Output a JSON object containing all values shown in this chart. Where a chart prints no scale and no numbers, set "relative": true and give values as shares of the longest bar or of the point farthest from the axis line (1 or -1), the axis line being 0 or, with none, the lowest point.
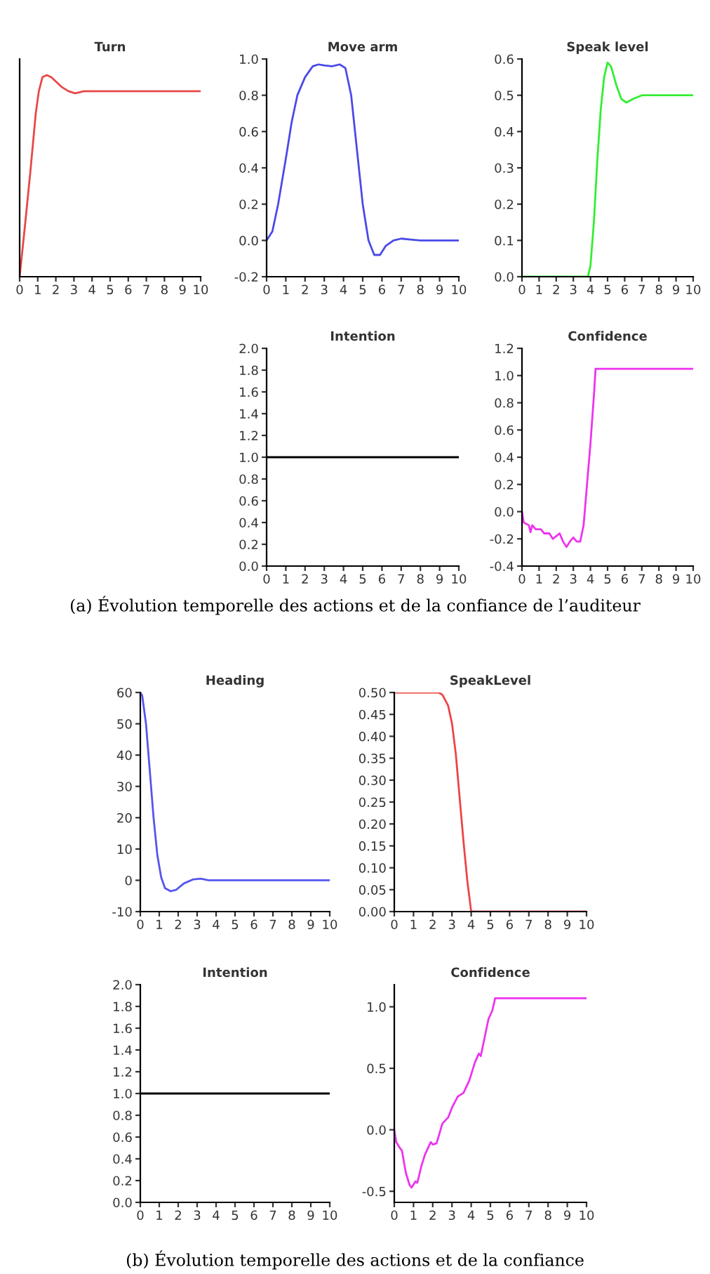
{
  "chart_data": [
    {
      "type": "line",
      "title": "Turn",
      "relative": true,
      "xlim": [
        0,
        10
      ],
      "xticks": [
        0,
        1,
        2,
        3,
        4,
        5,
        6,
        7,
        8,
        9,
        10
      ],
      "series": [
        {
          "color": "#e84848",
          "x": [
            0,
            0.29,
            0.58,
            0.89,
            1.06,
            1.26,
            1.5,
            1.74,
            1.98,
            2.34,
            2.7,
            3.07,
            3.55,
            10
          ],
          "values": [
            0,
            0.25,
            0.51,
            0.81,
            0.92,
            0.99,
            1.0,
            0.99,
            0.97,
            0.94,
            0.92,
            0.91,
            0.92,
            0.92
          ]
        }
      ]
    },
    {
      "type": "line",
      "title": "Move arm",
      "xlim": [
        0,
        10
      ],
      "xticks": [
        0,
        1,
        2,
        3,
        4,
        5,
        6,
        7,
        8,
        9,
        10
      ],
      "ylim": [
        -0.2,
        1.0
      ],
      "yticks": [
        {
          "value": -0.2,
          "label": "-0.2"
        },
        {
          "value": 0.0,
          "label": "0.0"
        },
        {
          "value": 0.2,
          "label": "0.2"
        },
        {
          "value": 0.4,
          "label": "0.4"
        },
        {
          "value": 0.6,
          "label": "0.6"
        },
        {
          "value": 0.8,
          "label": "0.8"
        },
        {
          "value": 1.0,
          "label": "1.0"
        }
      ],
      "series": [
        {
          "color": "#4a4ae8",
          "x": [
            0,
            0.3,
            0.6,
            1,
            1.3,
            1.6,
            2,
            2.4,
            2.7,
            3,
            3.4,
            3.8,
            4.1,
            4.4,
            4.7,
            5,
            5.3,
            5.6,
            5.9,
            6.2,
            6.6,
            7,
            7.5,
            8,
            10
          ],
          "values": [
            0.0,
            0.05,
            0.2,
            0.45,
            0.65,
            0.8,
            0.9,
            0.96,
            0.97,
            0.965,
            0.96,
            0.97,
            0.95,
            0.8,
            0.5,
            0.2,
            0.0,
            -0.08,
            -0.08,
            -0.03,
            0.0,
            0.01,
            0.005,
            0,
            0
          ]
        }
      ]
    },
    {
      "type": "line",
      "title": "Speak level",
      "xlim": [
        0,
        10
      ],
      "xticks": [
        0,
        1,
        2,
        3,
        4,
        5,
        6,
        7,
        8,
        9,
        10
      ],
      "ylim": [
        0,
        0.6
      ],
      "yticks": [
        {
          "value": 0,
          "label": "0.0"
        },
        {
          "value": 0.1,
          "label": "0.1"
        },
        {
          "value": 0.2,
          "label": "0.2"
        },
        {
          "value": 0.3,
          "label": "0.3"
        },
        {
          "value": 0.4,
          "label": "0.4"
        },
        {
          "value": 0.5,
          "label": "0.5"
        },
        {
          "value": 0.6,
          "label": "0.6"
        }
      ],
      "series": [
        {
          "color": "#33ee33",
          "x": [
            0,
            3.85,
            4.0,
            4.2,
            4.4,
            4.6,
            4.8,
            5.0,
            5.2,
            5.5,
            5.8,
            6.1,
            6.5,
            7,
            7.5,
            10
          ],
          "values": [
            0,
            0,
            0.03,
            0.15,
            0.32,
            0.46,
            0.55,
            0.59,
            0.58,
            0.53,
            0.49,
            0.48,
            0.49,
            0.5,
            0.5,
            0.5
          ]
        }
      ]
    },
    {
      "type": "line",
      "title": "Intention",
      "xlim": [
        0,
        10
      ],
      "xticks": [
        0,
        1,
        2,
        3,
        4,
        5,
        6,
        7,
        8,
        9,
        10
      ],
      "ylim": [
        0,
        2.0
      ],
      "yticks": [
        {
          "value": 0,
          "label": "0.0"
        },
        {
          "value": 0.2,
          "label": "0.2"
        },
        {
          "value": 0.4,
          "label": "0.4"
        },
        {
          "value": 0.6,
          "label": "0.6"
        },
        {
          "value": 0.8,
          "label": "0.8"
        },
        {
          "value": 1.0,
          "label": "1.0"
        },
        {
          "value": 1.2,
          "label": "1.2"
        },
        {
          "value": 1.4,
          "label": "1.4"
        },
        {
          "value": 1.6,
          "label": "1.6"
        },
        {
          "value": 1.8,
          "label": "1.8"
        },
        {
          "value": 2.0,
          "label": "2.0"
        }
      ],
      "series": [
        {
          "color": "#000000",
          "x": [
            0,
            10
          ],
          "values": [
            1.0,
            1.0
          ]
        }
      ]
    },
    {
      "type": "line",
      "title": "Confidence",
      "xlim": [
        0,
        10
      ],
      "xticks": [
        0,
        1,
        2,
        3,
        4,
        5,
        6,
        7,
        8,
        9,
        10
      ],
      "ylim": [
        -0.4,
        1.2
      ],
      "yticks": [
        {
          "value": -0.4,
          "label": "-0.4"
        },
        {
          "value": -0.2,
          "label": "-0.2"
        },
        {
          "value": 0.0,
          "label": "0.0"
        },
        {
          "value": 0.2,
          "label": "0.2"
        },
        {
          "value": 0.4,
          "label": "0.4"
        },
        {
          "value": 0.6,
          "label": "0.6"
        },
        {
          "value": 0.8,
          "label": "0.8"
        },
        {
          "value": 1.0,
          "label": "1.0"
        },
        {
          "value": 1.2,
          "label": "1.2"
        }
      ],
      "annotations": [
        "(a) Évolution temporelle des actions et de la confiance de l’auditeur"
      ],
      "series": [
        {
          "color": "#ee33ee",
          "x": [
            0,
            0.1,
            0.4,
            0.5,
            0.6,
            0.8,
            1.1,
            1.3,
            1.6,
            1.8,
            2.0,
            2.2,
            2.4,
            2.6,
            2.8,
            3.0,
            3.2,
            3.4,
            3.6,
            3.8,
            4.0,
            4.2,
            4.3,
            10
          ],
          "values": [
            0.0,
            -0.08,
            -0.1,
            -0.15,
            -0.1,
            -0.13,
            -0.13,
            -0.16,
            -0.16,
            -0.2,
            -0.18,
            -0.16,
            -0.22,
            -0.26,
            -0.22,
            -0.19,
            -0.22,
            -0.22,
            -0.1,
            0.2,
            0.5,
            0.85,
            1.05,
            1.05
          ]
        }
      ]
    },
    {
      "type": "line",
      "title": "Heading",
      "xlim": [
        0,
        10
      ],
      "xticks": [
        0,
        1,
        2,
        3,
        4,
        5,
        6,
        7,
        8,
        9,
        10
      ],
      "ylim": [
        -10,
        60
      ],
      "yticks": [
        -10,
        0,
        10,
        20,
        30,
        40,
        50,
        60
      ],
      "series": [
        {
          "color": "#5555ee",
          "x": [
            0,
            0.1,
            0.3,
            0.5,
            0.7,
            0.9,
            1.1,
            1.3,
            1.6,
            1.9,
            2.3,
            2.8,
            3.2,
            3.6,
            10
          ],
          "values": [
            60,
            59,
            50,
            35,
            20,
            8,
            1,
            -2.5,
            -3.5,
            -3,
            -1,
            0.3,
            0.5,
            0,
            0
          ]
        }
      ]
    },
    {
      "type": "line",
      "title": "SpeakLevel",
      "xlim": [
        0,
        10
      ],
      "xticks": [
        0,
        1,
        2,
        3,
        4,
        5,
        6,
        7,
        8,
        9,
        10
      ],
      "ylim": [
        0,
        0.5
      ],
      "yticks": [
        {
          "value": 0,
          "label": "0.00"
        },
        {
          "value": 0.05,
          "label": "0.05"
        },
        {
          "value": 0.1,
          "label": "0.10"
        },
        {
          "value": 0.15,
          "label": "0.15"
        },
        {
          "value": 0.2,
          "label": "0.20"
        },
        {
          "value": 0.25,
          "label": "0.25"
        },
        {
          "value": 0.3,
          "label": "0.30"
        },
        {
          "value": 0.35,
          "label": "0.35"
        },
        {
          "value": 0.4,
          "label": "0.40"
        },
        {
          "value": 0.45,
          "label": "0.45"
        },
        {
          "value": 0.5,
          "label": "0.50"
        }
      ],
      "series": [
        {
          "color": "#ee4444",
          "x": [
            0,
            2.3,
            2.5,
            2.8,
            3.0,
            3.2,
            3.4,
            3.6,
            3.8,
            4.0,
            10
          ],
          "values": [
            0.5,
            0.5,
            0.495,
            0.47,
            0.43,
            0.36,
            0.26,
            0.16,
            0.07,
            0.0,
            0
          ]
        }
      ]
    },
    {
      "type": "line",
      "title": "Intention",
      "xlim": [
        0,
        10
      ],
      "xticks": [
        0,
        1,
        2,
        3,
        4,
        5,
        6,
        7,
        8,
        9,
        10
      ],
      "ylim": [
        0,
        2.0
      ],
      "yticks": [
        {
          "value": 0,
          "label": "0.0"
        },
        {
          "value": 0.2,
          "label": "0.2"
        },
        {
          "value": 0.4,
          "label": "0.4"
        },
        {
          "value": 0.6,
          "label": "0.6"
        },
        {
          "value": 0.8,
          "label": "0.8"
        },
        {
          "value": 1.0,
          "label": "1.0"
        },
        {
          "value": 1.2,
          "label": "1.2"
        },
        {
          "value": 1.4,
          "label": "1.4"
        },
        {
          "value": 1.6,
          "label": "1.6"
        },
        {
          "value": 1.8,
          "label": "1.8"
        },
        {
          "value": 2.0,
          "label": "2.0"
        }
      ],
      "series": [
        {
          "color": "#000000",
          "x": [
            0,
            10
          ],
          "values": [
            1.0,
            1.0
          ]
        }
      ]
    },
    {
      "type": "line",
      "title": "Confidence",
      "xlim": [
        0,
        10
      ],
      "xticks": [
        0,
        1,
        2,
        3,
        4,
        5,
        6,
        7,
        8,
        9,
        10
      ],
      "ylim": [
        -0.59,
        1.18
      ],
      "yticks": [
        {
          "value": -0.5,
          "label": "-0.5"
        },
        {
          "value": 0.0,
          "label": "0.0"
        },
        {
          "value": 0.5,
          "label": "0.5"
        },
        {
          "value": 1.0,
          "label": "1.0"
        }
      ],
      "annotations": [
        "(b) Évolution temporelle des actions et de la confiance"
      ],
      "series": [
        {
          "color": "#ee33ee",
          "x": [
            0,
            0.1,
            0.3,
            0.4,
            0.6,
            0.8,
            0.9,
            1.1,
            1.2,
            1.4,
            1.6,
            1.9,
            2.0,
            2.2,
            2.5,
            2.8,
            3.0,
            3.3,
            3.6,
            3.9,
            4.2,
            4.4,
            4.5,
            4.7,
            4.9,
            5.1,
            5.25,
            10
          ],
          "values": [
            0.0,
            -0.1,
            -0.15,
            -0.17,
            -0.35,
            -0.45,
            -0.47,
            -0.42,
            -0.43,
            -0.3,
            -0.2,
            -0.1,
            -0.12,
            -0.11,
            0.05,
            0.1,
            0.18,
            0.27,
            0.3,
            0.4,
            0.55,
            0.62,
            0.6,
            0.75,
            0.9,
            0.97,
            1.07,
            1.07
          ]
        }
      ]
    }
  ]
}
